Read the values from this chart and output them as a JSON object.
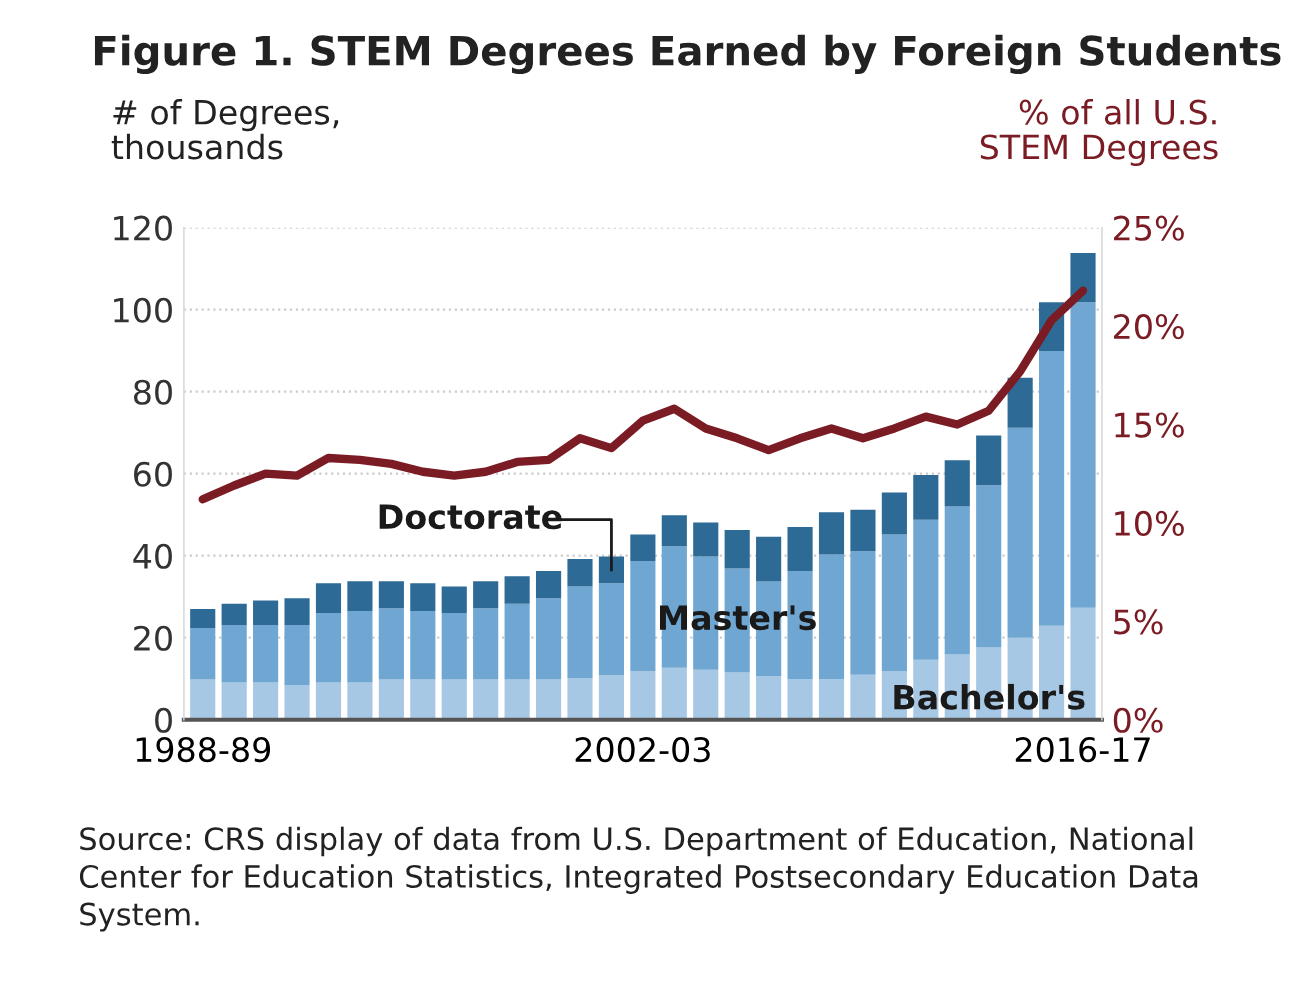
{
  "chart_data": {
    "type": "bar",
    "title": "Figure 1. STEM Degrees Earned by Foreign Students",
    "ylabel": "# of Degrees,\nthousands",
    "y2label": "% of all U.S.\nSTEM Degrees",
    "categories": [
      "1988-89",
      null,
      null,
      null,
      null,
      null,
      null,
      null,
      null,
      null,
      null,
      null,
      null,
      null,
      "2002-03",
      null,
      null,
      null,
      null,
      null,
      null,
      null,
      null,
      null,
      null,
      null,
      null,
      null,
      "2016-17"
    ],
    "stacked": true,
    "grid": "y",
    "legend": false,
    "ylim": [
      0,
      120
    ],
    "yticks": [
      0,
      20,
      40,
      60,
      80,
      100,
      120
    ],
    "y2lim": [
      0,
      25
    ],
    "y2ticks": [
      {
        "value": 0,
        "label": "0%"
      },
      {
        "value": 5,
        "label": "5%"
      },
      {
        "value": 10,
        "label": "10%"
      },
      {
        "value": 15,
        "label": "15%"
      },
      {
        "value": 20,
        "label": "20%"
      },
      {
        "value": 25,
        "label": "25%"
      }
    ],
    "series": [
      {
        "name": "Bachelor's",
        "color": "#a6c8e4",
        "values": [
          9.8,
          9.1,
          9.1,
          8.5,
          9.1,
          9.1,
          9.8,
          9.8,
          9.8,
          9.8,
          9.8,
          9.8,
          10.2,
          10.9,
          11.9,
          12.7,
          12.2,
          11.5,
          10.6,
          9.9,
          9.9,
          11.0,
          11.9,
          14.6,
          15.9,
          17.6,
          20.0,
          22.9,
          27.3
        ]
      },
      {
        "name": "Master's",
        "color": "#6fa6d2",
        "values": [
          12.6,
          14.0,
          14.0,
          14.6,
          16.9,
          17.4,
          17.4,
          16.7,
          16.2,
          17.4,
          18.5,
          19.8,
          22.3,
          22.4,
          26.8,
          29.6,
          27.6,
          25.4,
          23.1,
          26.4,
          30.4,
          30.1,
          33.3,
          34.2,
          36.1,
          39.6,
          51.2,
          67.0,
          74.5
        ]
      },
      {
        "name": "Doctorate",
        "color": "#2e6a96",
        "values": [
          4.6,
          5.2,
          6.0,
          6.5,
          7.3,
          7.3,
          6.6,
          6.8,
          6.5,
          6.6,
          6.7,
          6.7,
          6.7,
          6.5,
          6.5,
          7.6,
          8.3,
          9.4,
          10.9,
          10.7,
          10.3,
          10.1,
          10.2,
          10.9,
          11.3,
          12.1,
          12.2,
          11.9,
          12.0
        ]
      },
      {
        "type": "line",
        "axis": "y2",
        "color": "#7b1c24",
        "values": [
          11.2,
          11.9,
          12.5,
          12.4,
          13.3,
          13.2,
          13.0,
          12.6,
          12.4,
          12.6,
          13.1,
          13.2,
          14.3,
          13.8,
          15.2,
          15.8,
          14.8,
          14.3,
          13.7,
          14.3,
          14.8,
          14.3,
          14.8,
          15.4,
          15.0,
          15.7,
          17.7,
          20.3,
          21.8
        ]
      }
    ],
    "annotations": [
      "Source: CRS display of data from U.S. Department of Education, National Center for Education Statistics, Integrated Postsecondary Education Data System."
    ]
  }
}
